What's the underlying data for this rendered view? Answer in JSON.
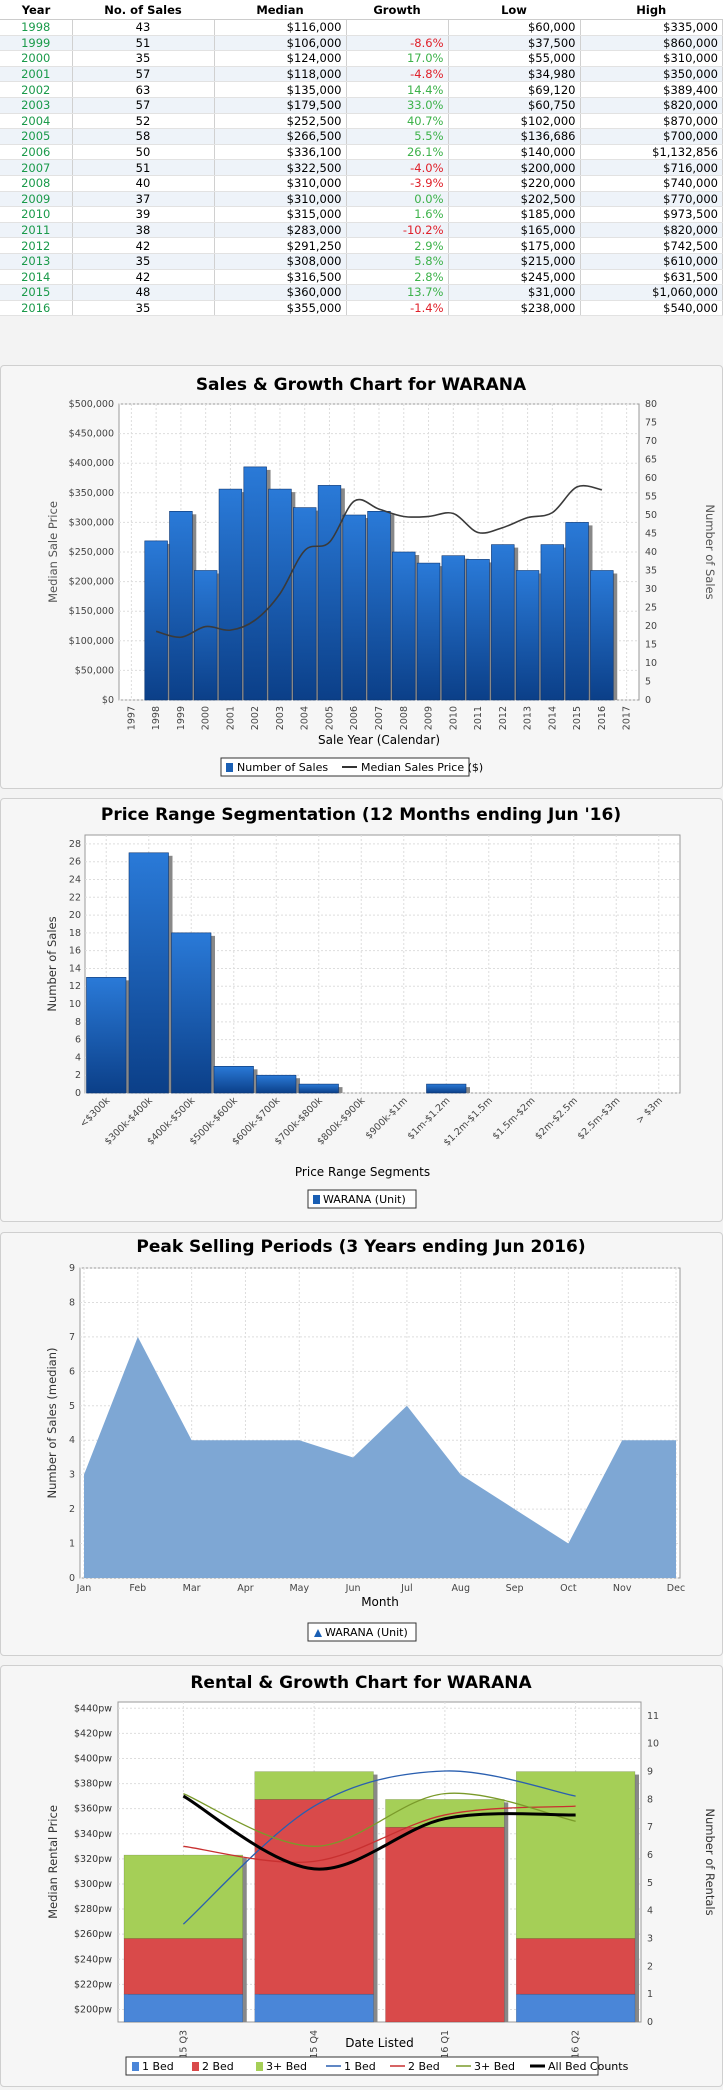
{
  "table": {
    "headers": [
      "Year",
      "No. of Sales",
      "Median",
      "Growth",
      "Low",
      "High"
    ],
    "rows": [
      [
        "1998",
        "43",
        "$116,000",
        "",
        "$60,000",
        "$335,000"
      ],
      [
        "1999",
        "51",
        "$106,000",
        "-8.6%",
        "$37,500",
        "$860,000"
      ],
      [
        "2000",
        "35",
        "$124,000",
        "17.0%",
        "$55,000",
        "$310,000"
      ],
      [
        "2001",
        "57",
        "$118,000",
        "-4.8%",
        "$34,980",
        "$350,000"
      ],
      [
        "2002",
        "63",
        "$135,000",
        "14.4%",
        "$69,120",
        "$389,400"
      ],
      [
        "2003",
        "57",
        "$179,500",
        "33.0%",
        "$60,750",
        "$820,000"
      ],
      [
        "2004",
        "52",
        "$252,500",
        "40.7%",
        "$102,000",
        "$870,000"
      ],
      [
        "2005",
        "58",
        "$266,500",
        "5.5%",
        "$136,686",
        "$700,000"
      ],
      [
        "2006",
        "50",
        "$336,100",
        "26.1%",
        "$140,000",
        "$1,132,856"
      ],
      [
        "2007",
        "51",
        "$322,500",
        "-4.0%",
        "$200,000",
        "$716,000"
      ],
      [
        "2008",
        "40",
        "$310,000",
        "-3.9%",
        "$220,000",
        "$740,000"
      ],
      [
        "2009",
        "37",
        "$310,000",
        "0.0%",
        "$202,500",
        "$770,000"
      ],
      [
        "2010",
        "39",
        "$315,000",
        "1.6%",
        "$185,000",
        "$973,500"
      ],
      [
        "2011",
        "38",
        "$283,000",
        "-10.2%",
        "$165,000",
        "$820,000"
      ],
      [
        "2012",
        "42",
        "$291,250",
        "2.9%",
        "$175,000",
        "$742,500"
      ],
      [
        "2013",
        "35",
        "$308,000",
        "5.8%",
        "$215,000",
        "$610,000"
      ],
      [
        "2014",
        "42",
        "$316,500",
        "2.8%",
        "$245,000",
        "$631,500"
      ],
      [
        "2015",
        "48",
        "$360,000",
        "13.7%",
        "$31,000",
        "$1,060,000"
      ],
      [
        "2016",
        "35",
        "$355,000",
        "-1.4%",
        "$238,000",
        "$540,000"
      ]
    ]
  },
  "chart_data": [
    {
      "type": "bar",
      "title": "Sales & Growth Chart for WARANA",
      "xlabel": "Sale Year (Calendar)",
      "ylabel": "Median Sale Price",
      "y2label": "Number of Sales",
      "x_ticks": [
        "1997",
        "1998",
        "1999",
        "2000",
        "2001",
        "2002",
        "2003",
        "2004",
        "2005",
        "2006",
        "2007",
        "2008",
        "2009",
        "2010",
        "2011",
        "2012",
        "2013",
        "2014",
        "2015",
        "2016",
        "2017"
      ],
      "y_ticks": [
        "$0",
        "$50,000",
        "$100,000",
        "$150,000",
        "$200,000",
        "$250,000",
        "$300,000",
        "$350,000",
        "$400,000",
        "$450,000",
        "$500,000"
      ],
      "y2_ticks": [
        "0",
        "5",
        "10",
        "15",
        "20",
        "25",
        "30",
        "35",
        "40",
        "45",
        "50",
        "55",
        "60",
        "65",
        "70",
        "75",
        "80"
      ],
      "ylim": [
        0,
        500000
      ],
      "y2lim": [
        0,
        80
      ],
      "categories": [
        "1998",
        "1999",
        "2000",
        "2001",
        "2002",
        "2003",
        "2004",
        "2005",
        "2006",
        "2007",
        "2008",
        "2009",
        "2010",
        "2011",
        "2012",
        "2013",
        "2014",
        "2015",
        "2016"
      ],
      "series": [
        {
          "name": "Number of Sales",
          "axis": "right",
          "values": [
            43,
            51,
            35,
            57,
            63,
            57,
            52,
            58,
            50,
            51,
            40,
            37,
            39,
            38,
            42,
            35,
            42,
            48,
            35
          ]
        },
        {
          "name": "Median Sales Price ($)",
          "axis": "left",
          "values": [
            116000,
            106000,
            124000,
            118000,
            135000,
            179500,
            252500,
            266500,
            336100,
            322500,
            310000,
            310000,
            315000,
            283000,
            291250,
            308000,
            316500,
            360000,
            355000
          ]
        }
      ],
      "legend": [
        "Number of Sales",
        "Median Sales Price ($)"
      ]
    },
    {
      "type": "bar",
      "title": "Price Range Segmentation (12 Months ending Jun '16)",
      "xlabel": "Price Range Segments",
      "ylabel": "Number of Sales",
      "y_ticks": [
        "0",
        "2",
        "4",
        "6",
        "8",
        "10",
        "12",
        "14",
        "16",
        "18",
        "20",
        "22",
        "24",
        "26",
        "28"
      ],
      "ylim": [
        0,
        29
      ],
      "categories": [
        "<$300k",
        "$300k-$400k",
        "$400k-$500k",
        "$500k-$600k",
        "$600k-$700k",
        "$700k-$800k",
        "$800k-$900k",
        "$900k-$1m",
        "$1m-$1.2m",
        "$1.2m-$1.5m",
        "$1.5m-$2m",
        "$2m-$2.5m",
        "$2.5m-$3m",
        "> $3m"
      ],
      "series": [
        {
          "name": "WARANA (Unit)",
          "values": [
            13,
            27,
            18,
            3,
            2,
            1,
            0,
            0,
            1,
            0,
            0,
            0,
            0,
            0
          ]
        }
      ],
      "legend": [
        "WARANA (Unit)"
      ]
    },
    {
      "type": "area",
      "title": "Peak Selling Periods (3 Years ending Jun 2016)",
      "xlabel": "Month",
      "ylabel": "Number of Sales (median)",
      "y_ticks": [
        "0",
        "1",
        "2",
        "3",
        "4",
        "5",
        "6",
        "7",
        "8",
        "9"
      ],
      "ylim": [
        0,
        9
      ],
      "categories": [
        "Jan",
        "Feb",
        "Mar",
        "Apr",
        "May",
        "Jun",
        "Jul",
        "Aug",
        "Sep",
        "Oct",
        "Nov",
        "Dec"
      ],
      "series": [
        {
          "name": "WARANA (Unit)",
          "values": [
            3,
            7,
            4,
            4,
            4,
            3.5,
            5,
            3,
            2,
            1,
            4,
            4
          ]
        }
      ],
      "legend": [
        "WARANA (Unit)"
      ]
    },
    {
      "type": "bar",
      "title": "Rental & Growth Chart for WARANA",
      "xlabel": "Date Listed",
      "ylabel": "Median Rental Price",
      "y2label": "Number of Rentals",
      "y_ticks": [
        "$200pw",
        "$220pw",
        "$240pw",
        "$260pw",
        "$280pw",
        "$300pw",
        "$320pw",
        "$340pw",
        "$360pw",
        "$380pw",
        "$400pw",
        "$420pw",
        "$440pw"
      ],
      "y2_ticks": [
        "0",
        "1",
        "2",
        "3",
        "4",
        "5",
        "6",
        "7",
        "8",
        "9",
        "10",
        "11"
      ],
      "ylim": [
        190,
        445
      ],
      "y2lim": [
        0,
        11.5
      ],
      "categories": [
        "2015 Q3",
        "2015 Q4",
        "2016 Q1",
        "2016 Q2"
      ],
      "stacked_series": [
        {
          "name": "1 Bed",
          "values": [
            1,
            1,
            0,
            1
          ]
        },
        {
          "name": "2 Bed",
          "values": [
            2,
            7,
            7,
            2
          ]
        },
        {
          "name": "3+ Bed",
          "values": [
            3,
            1,
            1,
            6
          ]
        }
      ],
      "line_series": [
        {
          "name": "1 Bed",
          "values": [
            268,
            362,
            390,
            370
          ]
        },
        {
          "name": "2 Bed",
          "values": [
            330,
            318,
            355,
            362
          ]
        },
        {
          "name": "3+ Bed",
          "values": [
            372,
            330,
            372,
            350
          ]
        },
        {
          "name": "All Bed Counts",
          "values": [
            370,
            312,
            352,
            355
          ]
        }
      ],
      "legend": [
        "1 Bed",
        "2 Bed",
        "3+ Bed",
        "1 Bed",
        "2 Bed",
        "3+ Bed",
        "All Bed Counts"
      ]
    }
  ],
  "colors": {
    "bar_blue": "#1a5fb4",
    "line_dark": "#3a3a3a",
    "area_blue": "#7ea7d4",
    "bed1": "#4a86d8",
    "bed2": "#d94a4a",
    "bed3": "#a5cf57",
    "line1": "#2a5fb0",
    "line2": "#c83030",
    "line3": "#7a9a2a",
    "line_all": "#000000"
  }
}
